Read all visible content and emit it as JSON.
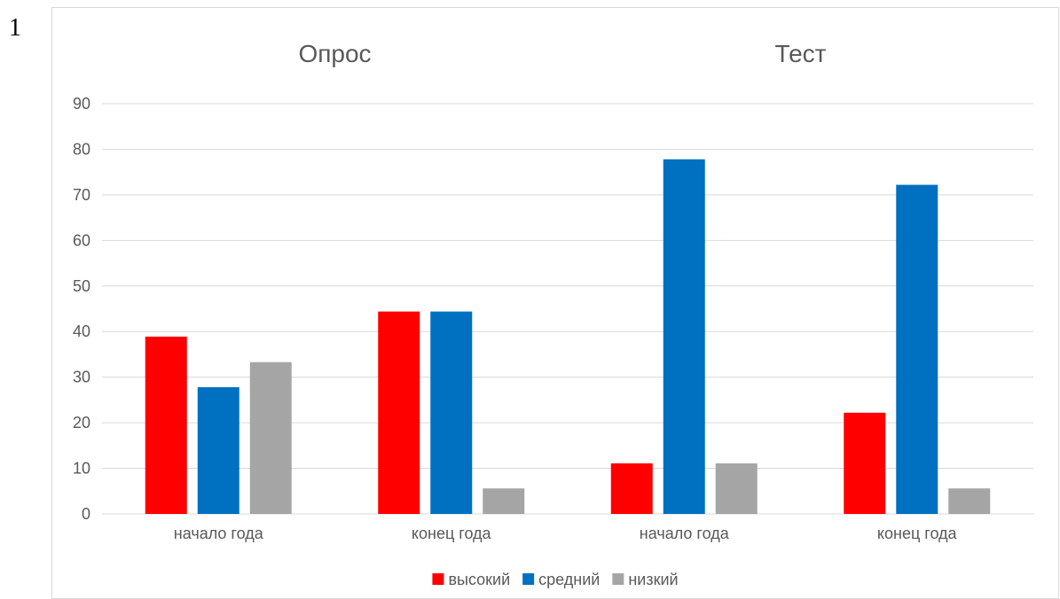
{
  "page_number": "1",
  "chart_data": {
    "type": "bar",
    "groups": [
      {
        "title": "Опрос",
        "categories": [
          "начало года",
          "конец года"
        ]
      },
      {
        "title": "Тест",
        "categories": [
          "начало года",
          "конец года"
        ]
      }
    ],
    "categories": [
      "начало года",
      "конец года",
      "начало года",
      "конец года"
    ],
    "series": [
      {
        "name": "высокий",
        "color": "#ff0000",
        "values": [
          38.9,
          44.4,
          11.1,
          22.2
        ]
      },
      {
        "name": "средний",
        "color": "#0070c0",
        "values": [
          27.8,
          44.4,
          77.8,
          72.2
        ]
      },
      {
        "name": "низкий",
        "color": "#a5a5a5",
        "values": [
          33.3,
          5.6,
          11.1,
          5.6
        ]
      }
    ],
    "ylim": [
      0,
      90
    ],
    "yticks": [
      0,
      10,
      20,
      30,
      40,
      50,
      60,
      70,
      80,
      90
    ],
    "grid": true,
    "legend_position": "bottom"
  }
}
